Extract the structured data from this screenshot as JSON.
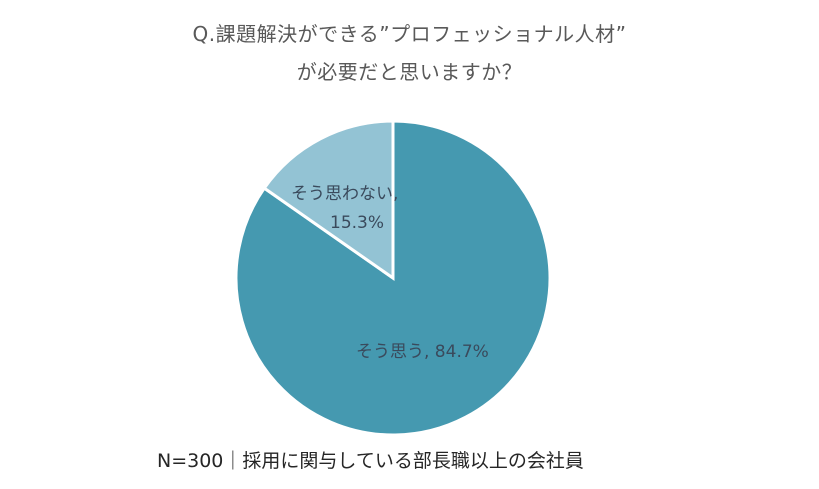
{
  "chart_data": {
    "type": "pie",
    "title": "Q.課題解決ができる”プロフェッショナル人材”が必要だと思いますか？",
    "title_lines": [
      "Q.課題解決ができる”プロフェッショナル人材”",
      "が必要だと思いますか？"
    ],
    "categories": [
      "そう思う",
      "そう思わない"
    ],
    "values": [
      84.7,
      15.3
    ],
    "unit": "%",
    "colors": [
      "#4599b0",
      "#93c3d4"
    ],
    "data_labels": [
      "そう思う, 84.7%",
      "そう思わない, 15.3%"
    ],
    "start_angle": "12 o'clock, clockwise",
    "legend": "none",
    "note": "N=300｜採用に関与している部長職以上の会社員"
  },
  "labels": {
    "slice0": "そう思う, 84.7%",
    "slice1_line1": "そう思わない,",
    "slice1_line2": "15.3%"
  },
  "footer": "N=300｜採用に関与している部長職以上の会社員"
}
